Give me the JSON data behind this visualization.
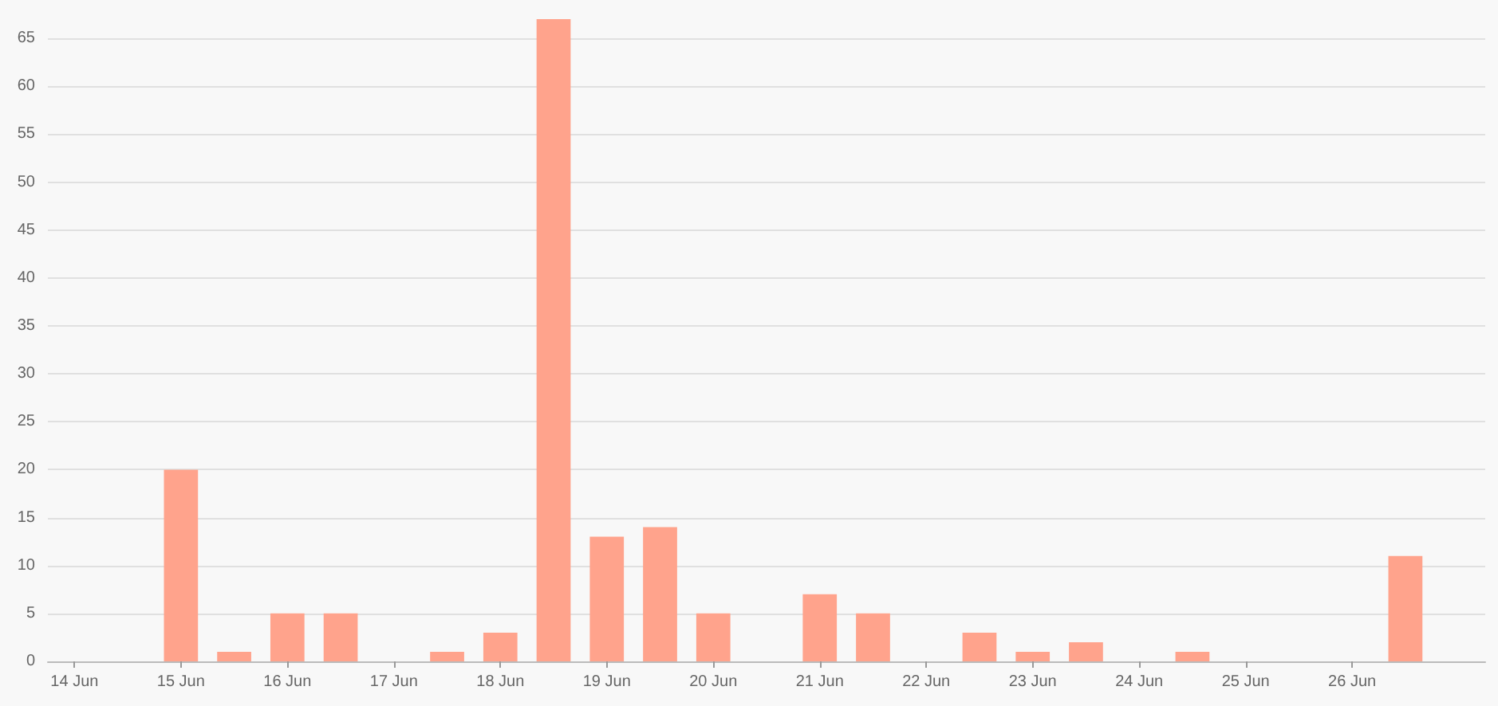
{
  "chart_data": {
    "type": "bar",
    "categories": [
      "14 Jun",
      null,
      "15 Jun",
      null,
      "16 Jun",
      null,
      "17 Jun",
      null,
      "18 Jun",
      null,
      "19 Jun",
      null,
      "20 Jun",
      null,
      "21 Jun",
      null,
      "22 Jun",
      null,
      "23 Jun",
      null,
      "24 Jun",
      null,
      "25 Jun",
      null,
      "26 Jun",
      null,
      null
    ],
    "values": [
      0,
      0,
      20,
      1,
      5,
      5,
      0,
      1,
      3,
      67,
      13,
      14,
      5,
      0,
      7,
      5,
      0,
      3,
      1,
      2,
      0,
      1,
      0,
      0,
      0,
      11,
      0
    ],
    "color": "#ffa38c",
    "ylim": [
      0,
      67
    ],
    "yticks": [
      0,
      5,
      10,
      15,
      20,
      25,
      30,
      35,
      40,
      45,
      50,
      55,
      60,
      65
    ],
    "grid": "y"
  }
}
